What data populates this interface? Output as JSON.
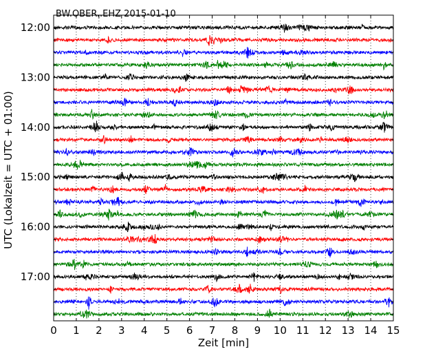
{
  "chart_data": {
    "type": "line",
    "title": "BW.OBER..EHZ 2015-01-10",
    "xlabel": "Zeit  [min]",
    "ylabel": "UTC (Lokalzeit = UTC + 01:00)",
    "xlim": [
      0,
      15
    ],
    "x_ticks": [
      "0",
      "1",
      "2",
      "3",
      "4",
      "5",
      "6",
      "7",
      "8",
      "9",
      "10",
      "11",
      "12",
      "13",
      "14",
      "15"
    ],
    "y_tick_labels": [
      "12:00",
      "13:00",
      "14:00",
      "15:00",
      "16:00",
      "17:00"
    ],
    "grid": "vertical-dotted",
    "trace_colors": [
      "#000000",
      "#ff0000",
      "#0000ff",
      "#008000"
    ],
    "traces": [
      {
        "start": "12:00",
        "color": "#000000"
      },
      {
        "start": "12:15",
        "color": "#ff0000"
      },
      {
        "start": "12:30",
        "color": "#0000ff"
      },
      {
        "start": "12:45",
        "color": "#008000"
      },
      {
        "start": "13:00",
        "color": "#000000"
      },
      {
        "start": "13:15",
        "color": "#ff0000"
      },
      {
        "start": "13:30",
        "color": "#0000ff"
      },
      {
        "start": "13:45",
        "color": "#008000"
      },
      {
        "start": "14:00",
        "color": "#000000"
      },
      {
        "start": "14:15",
        "color": "#ff0000"
      },
      {
        "start": "14:30",
        "color": "#0000ff"
      },
      {
        "start": "14:45",
        "color": "#008000"
      },
      {
        "start": "15:00",
        "color": "#000000"
      },
      {
        "start": "15:15",
        "color": "#ff0000"
      },
      {
        "start": "15:30",
        "color": "#0000ff"
      },
      {
        "start": "15:45",
        "color": "#008000"
      },
      {
        "start": "16:00",
        "color": "#000000"
      },
      {
        "start": "16:15",
        "color": "#ff0000"
      },
      {
        "start": "16:30",
        "color": "#0000ff"
      },
      {
        "start": "16:45",
        "color": "#008000"
      },
      {
        "start": "17:00",
        "color": "#000000"
      },
      {
        "start": "17:15",
        "color": "#ff0000"
      },
      {
        "start": "17:30",
        "color": "#0000ff"
      },
      {
        "start": "17:45",
        "color": "#008000"
      }
    ]
  }
}
